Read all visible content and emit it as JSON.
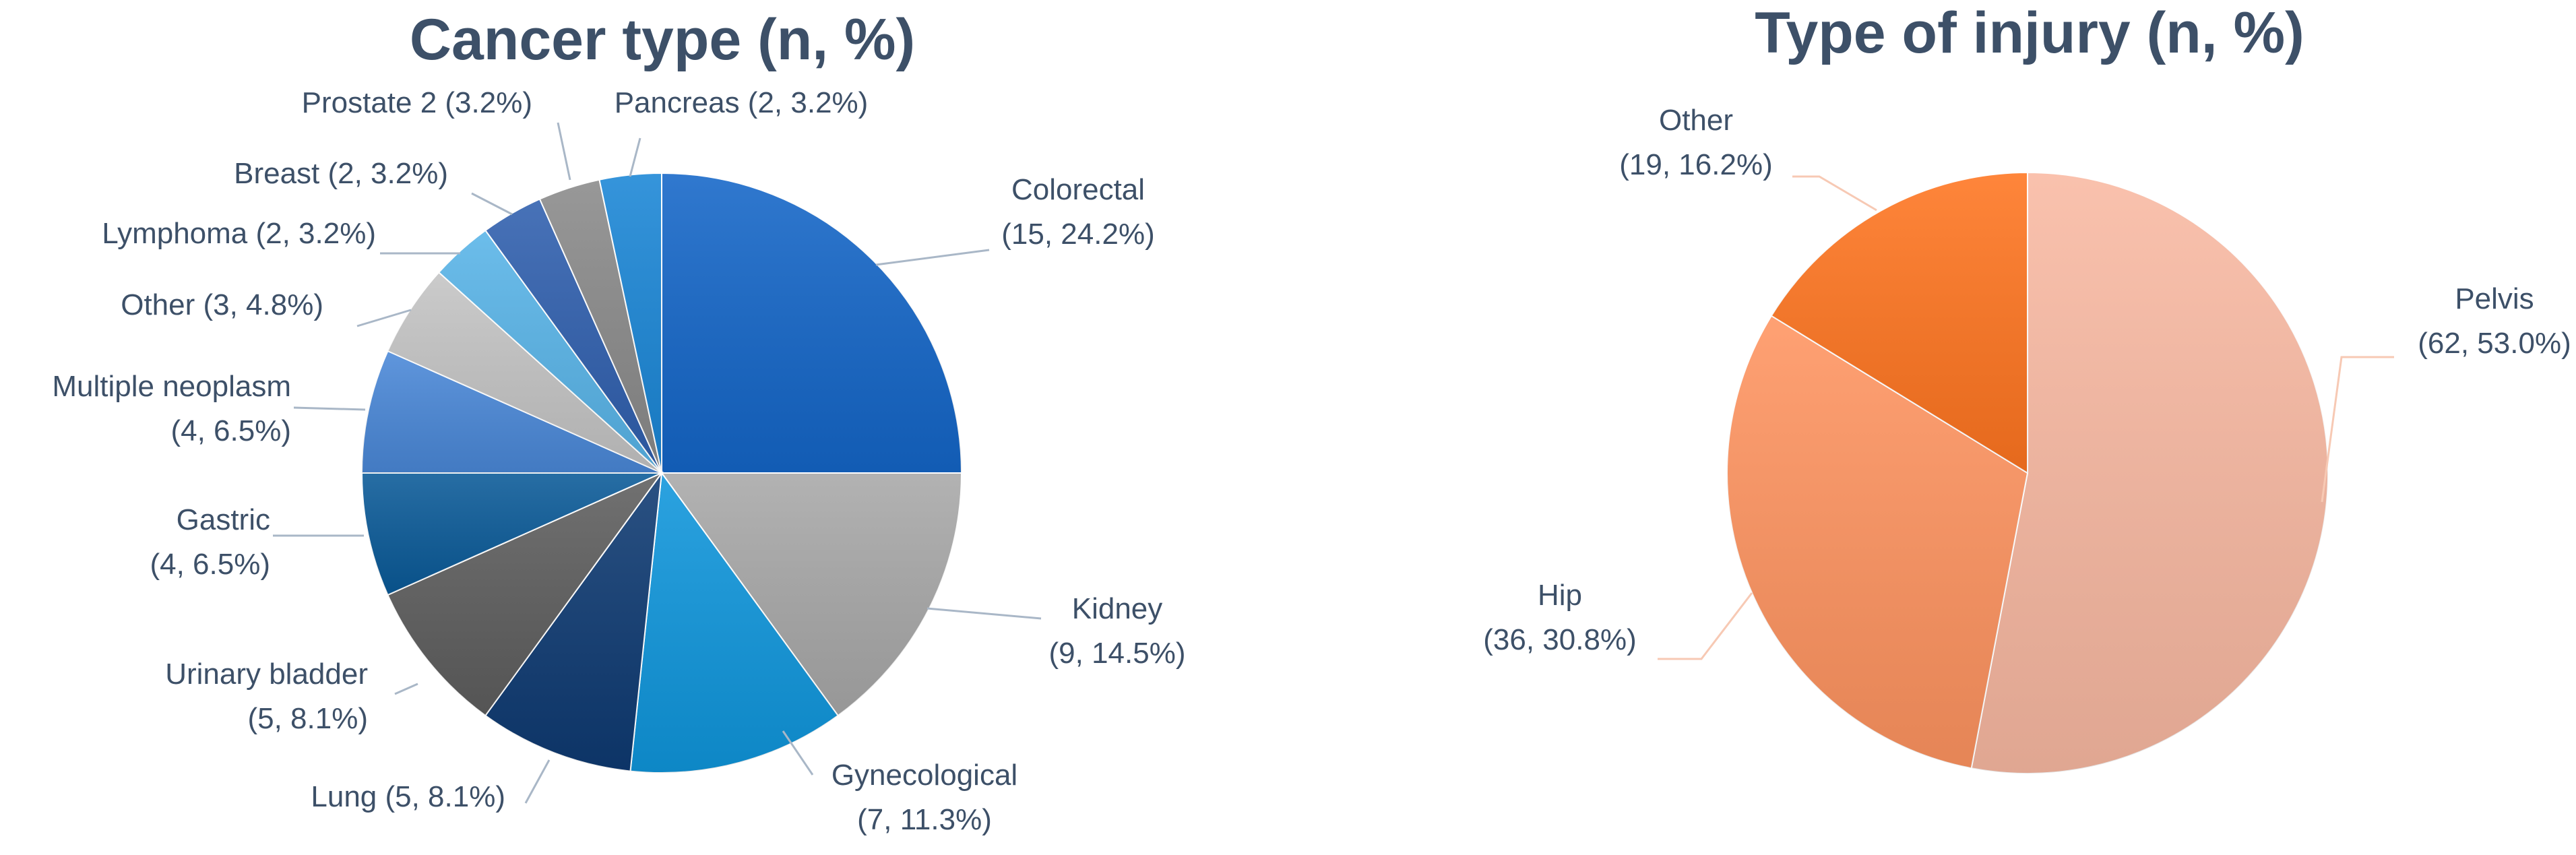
{
  "chart_data": [
    {
      "type": "pie",
      "title": "Cancer type (n, %)",
      "slices": [
        {
          "label": "Colorectal",
          "value": 15,
          "percent": 24.2,
          "label_lines": [
            "Colorectal",
            "(15, 24.2%)"
          ],
          "color": "#1466c8"
        },
        {
          "label": "Kidney",
          "value": 9,
          "percent": 14.5,
          "label_lines": [
            "Kidney",
            "(9, 14.5%)"
          ],
          "color": "#a8a8a8"
        },
        {
          "label": "Gynecological",
          "value": 7,
          "percent": 11.3,
          "label_lines": [
            "Gynecological",
            "(7, 11.3%)"
          ],
          "color": "#0f96dc"
        },
        {
          "label": "Lung",
          "value": 5,
          "percent": 8.1,
          "label_lines": [
            "Lung (5, 8.1%)"
          ],
          "color": "#0e3a72"
        },
        {
          "label": "Urinary bladder",
          "value": 5,
          "percent": 8.1,
          "label_lines": [
            "Urinary bladder",
            "(5, 8.1%)"
          ],
          "color": "#5e5e5e"
        },
        {
          "label": "Gastric",
          "value": 4,
          "percent": 6.5,
          "label_lines": [
            "Gastric",
            "(4, 6.5%)"
          ],
          "color": "#0a5a98"
        },
        {
          "label": "Multiple neoplasm",
          "value": 4,
          "percent": 6.5,
          "label_lines": [
            "Multiple neoplasm",
            "(4, 6.5%)"
          ],
          "color": "#4a88d8"
        },
        {
          "label": "Other",
          "value": 3,
          "percent": 4.8,
          "label_lines": [
            "Other (3, 4.8%)"
          ],
          "color": "#c4c4c4"
        },
        {
          "label": "Lymphoma",
          "value": 2,
          "percent": 3.2,
          "label_lines": [
            "Lymphoma (2, 3.2%)"
          ],
          "color": "#58b4e8"
        },
        {
          "label": "Breast",
          "value": 2,
          "percent": 3.2,
          "label_lines": [
            "Breast (2, 3.2%)"
          ],
          "color": "#2f5fae"
        },
        {
          "label": "Prostate",
          "value": 2,
          "percent": 3.2,
          "label_lines": [
            "Prostate 2 (3.2%)"
          ],
          "color": "#8a8a8a"
        },
        {
          "label": "Pancreas",
          "value": 2,
          "percent": 3.2,
          "label_lines": [
            "Pancreas (2, 3.2%)"
          ],
          "color": "#1a86d6"
        }
      ]
    },
    {
      "type": "pie",
      "title": "Type of injury (n, %)",
      "slices": [
        {
          "label": "Pelvis",
          "value": 62,
          "percent": 53.0,
          "label_lines": [
            "Pelvis",
            "(62, 53.0%)"
          ],
          "color": "#f9b9a2"
        },
        {
          "label": "Hip",
          "value": 36,
          "percent": 30.8,
          "label_lines": [
            "Hip",
            "(36, 30.8%)"
          ],
          "color": "#ff9460"
        },
        {
          "label": "Other",
          "value": 19,
          "percent": 16.2,
          "label_lines": [
            "Other",
            "(19, 16.2%)"
          ],
          "color": "#ff7520"
        }
      ]
    }
  ]
}
